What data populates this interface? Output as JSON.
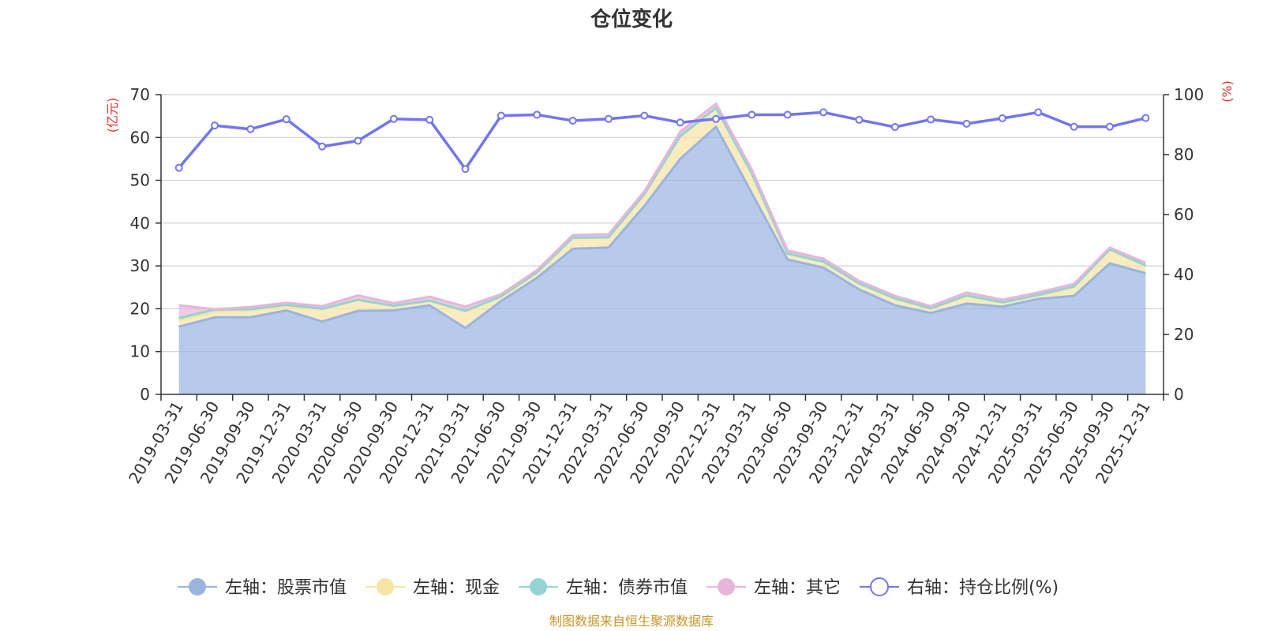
{
  "chart_data": {
    "type": "area",
    "title": "仓位变化",
    "left_axis_unit": "(亿元)",
    "right_axis_unit": "(%)",
    "ylim_left": [
      0,
      70
    ],
    "ylim_right": [
      0,
      100
    ],
    "left_ticks": [
      "0",
      "10",
      "20",
      "30",
      "40",
      "50",
      "60",
      "70"
    ],
    "right_ticks": [
      "0",
      "20",
      "40",
      "60",
      "80",
      "100"
    ],
    "categories": [
      "2019-03-31",
      "2019-06-30",
      "2019-09-30",
      "2019-12-31",
      "2020-03-31",
      "2020-06-30",
      "2020-09-30",
      "2020-12-31",
      "2021-03-31",
      "2021-06-30",
      "2021-09-30",
      "2021-12-31",
      "2022-03-31",
      "2022-06-30",
      "2022-09-30",
      "2022-12-31",
      "2023-03-31",
      "2023-06-30",
      "2023-09-30",
      "2023-12-31",
      "2024-03-31",
      "2024-06-30",
      "2024-09-30",
      "2024-12-31",
      "2025-03-31",
      "2025-06-30",
      "2025-09-30",
      "2025-12-31"
    ],
    "series": [
      {
        "name": "左轴：股票市值",
        "axis": "left",
        "stack": true,
        "color": "#9ab4e0",
        "values": [
          15.8,
          18.0,
          18.0,
          19.6,
          17.0,
          19.5,
          19.6,
          20.8,
          15.5,
          21.8,
          27.2,
          34.0,
          34.3,
          44.0,
          55.0,
          62.5,
          47.0,
          31.5,
          29.6,
          24.5,
          20.8,
          19.0,
          21.2,
          20.5,
          22.3,
          23.0,
          30.6,
          28.3
        ]
      },
      {
        "name": "左轴：现金",
        "axis": "left",
        "stack": true,
        "color": "#f8e4a4",
        "values": [
          1.5,
          1.3,
          1.6,
          1.2,
          2.8,
          2.5,
          1.0,
          1.0,
          3.9,
          0.9,
          1.2,
          2.5,
          2.3,
          2.7,
          5.2,
          4.3,
          4.5,
          1.3,
          1.3,
          1.3,
          1.5,
          1.0,
          1.8,
          0.9,
          0.8,
          2.1,
          3.2,
          1.7
        ]
      },
      {
        "name": "左轴：债券市值",
        "axis": "left",
        "stack": true,
        "color": "#93d4d2",
        "values": [
          0.5,
          0.5,
          0.3,
          0.1,
          0.2,
          0.1,
          0.1,
          0.1,
          0.1,
          0.2,
          0.1,
          0.1,
          0.1,
          0.1,
          0.1,
          0.1,
          0.1,
          0.1,
          0.1,
          0.1,
          0.1,
          0.1,
          0.1,
          0.1,
          0.1,
          0.1,
          0.1,
          0.1
        ]
      },
      {
        "name": "左轴：其它",
        "axis": "left",
        "stack": true,
        "color": "#e6b6d9",
        "values": [
          3.0,
          0.1,
          0.5,
          0.5,
          0.6,
          1.0,
          0.6,
          0.9,
          1.0,
          0.5,
          0.5,
          0.6,
          0.7,
          0.6,
          1.0,
          1.0,
          0.9,
          0.7,
          0.7,
          0.6,
          0.6,
          0.5,
          0.7,
          0.6,
          0.6,
          0.6,
          0.4,
          0.6
        ]
      },
      {
        "name": "右轴：持仓比例(%)",
        "axis": "right",
        "stack": false,
        "color": "#7275ee",
        "values": [
          75.6,
          89.7,
          88.5,
          91.8,
          82.7,
          84.6,
          91.9,
          91.6,
          75.2,
          93.0,
          93.3,
          91.3,
          91.9,
          93.0,
          90.7,
          91.9,
          93.3,
          93.3,
          94.1,
          91.6,
          89.2,
          91.7,
          90.3,
          92.1,
          94.1,
          89.3,
          89.3,
          92.2
        ]
      }
    ],
    "legend_position": "bottom",
    "grid": true
  },
  "legend": {
    "items": [
      {
        "label": "左轴：股票市值",
        "color": "#9ab4e0",
        "marker": "filled-circle"
      },
      {
        "label": "左轴：现金",
        "color": "#f8e4a4",
        "marker": "filled-circle"
      },
      {
        "label": "左轴：债券市值",
        "color": "#93d4d2",
        "marker": "filled-circle"
      },
      {
        "label": "左轴：其它",
        "color": "#e6b6d9",
        "marker": "filled-circle"
      },
      {
        "label": "右轴：持仓比例(%)",
        "color": "#7275ee",
        "marker": "hollow-circle"
      }
    ]
  },
  "source": "制图数据来自恒生聚源数据库"
}
